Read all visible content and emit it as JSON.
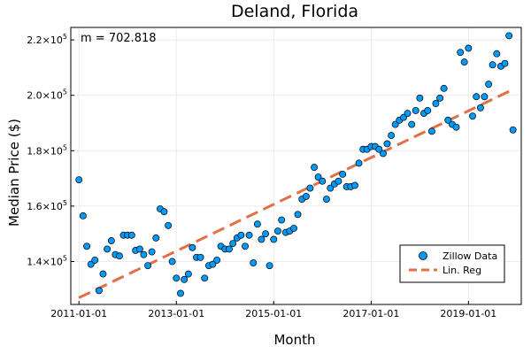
{
  "chart_data": {
    "type": "scatter",
    "title": "Deland, Florida",
    "xlabel": "Month",
    "ylabel": "Median Price ($)",
    "annotation": "m = 702.818",
    "grid": true,
    "legend_position": "bottom-right",
    "xlim": [
      "2010-11-01",
      "2020-02-01"
    ],
    "ylim": [
      124500,
      224500
    ],
    "x_ticks": [
      "2011-01-01",
      "2013-01-01",
      "2015-01-01",
      "2017-01-01",
      "2019-01-01"
    ],
    "y_ticks": [
      140000,
      160000,
      180000,
      200000,
      220000
    ],
    "y_tick_labels": [
      {
        "base": "1.4×10",
        "exp": "5"
      },
      {
        "base": "1.6×10",
        "exp": "5"
      },
      {
        "base": "1.8×10",
        "exp": "5"
      },
      {
        "base": "2.0×10",
        "exp": "5"
      },
      {
        "base": "2.2×10",
        "exp": "5"
      }
    ],
    "series": [
      {
        "name": "Zillow Data",
        "kind": "scatter",
        "color": "#009AFA",
        "x": [
          "2011-01-01",
          "2011-02-01",
          "2011-03-01",
          "2011-04-01",
          "2011-05-01",
          "2011-06-01",
          "2011-07-01",
          "2011-08-01",
          "2011-09-01",
          "2011-10-01",
          "2011-11-01",
          "2011-12-01",
          "2012-01-01",
          "2012-02-01",
          "2012-03-01",
          "2012-04-01",
          "2012-05-01",
          "2012-06-01",
          "2012-07-01",
          "2012-08-01",
          "2012-09-01",
          "2012-10-01",
          "2012-11-01",
          "2012-12-01",
          "2013-01-01",
          "2013-02-01",
          "2013-03-01",
          "2013-04-01",
          "2013-05-01",
          "2013-06-01",
          "2013-07-01",
          "2013-08-01",
          "2013-09-01",
          "2013-10-01",
          "2013-11-01",
          "2013-12-01",
          "2014-01-01",
          "2014-02-01",
          "2014-03-01",
          "2014-04-01",
          "2014-05-01",
          "2014-06-01",
          "2014-07-01",
          "2014-08-01",
          "2014-09-01",
          "2014-10-01",
          "2014-11-01",
          "2014-12-01",
          "2015-01-01",
          "2015-02-01",
          "2015-03-01",
          "2015-04-01",
          "2015-05-01",
          "2015-06-01",
          "2015-07-01",
          "2015-08-01",
          "2015-09-01",
          "2015-10-01",
          "2015-11-01",
          "2015-12-01",
          "2016-01-01",
          "2016-02-01",
          "2016-03-01",
          "2016-04-01",
          "2016-05-01",
          "2016-06-01",
          "2016-07-01",
          "2016-08-01",
          "2016-09-01",
          "2016-10-01",
          "2016-11-01",
          "2016-12-01",
          "2017-01-01",
          "2017-02-01",
          "2017-03-01",
          "2017-04-01",
          "2017-05-01",
          "2017-06-01",
          "2017-07-01",
          "2017-08-01",
          "2017-09-01",
          "2017-10-01",
          "2017-11-01",
          "2017-12-01",
          "2018-01-01",
          "2018-02-01",
          "2018-03-01",
          "2018-04-01",
          "2018-05-01",
          "2018-06-01",
          "2018-07-01",
          "2018-08-01",
          "2018-09-01",
          "2018-10-01",
          "2018-11-01",
          "2018-12-01",
          "2019-01-01",
          "2019-02-01",
          "2019-03-01",
          "2019-04-01",
          "2019-05-01",
          "2019-06-01",
          "2019-07-01",
          "2019-08-01",
          "2019-09-01",
          "2019-10-01",
          "2019-11-01",
          "2019-12-01"
        ],
        "y": [
          169500,
          156500,
          145500,
          139000,
          140500,
          129500,
          135500,
          144500,
          147500,
          142500,
          142000,
          149500,
          149500,
          149500,
          144000,
          144500,
          142500,
          138500,
          143500,
          148500,
          159000,
          158000,
          153000,
          140000,
          134000,
          128500,
          133500,
          135500,
          145000,
          141500,
          141500,
          134000,
          138500,
          139000,
          140500,
          145500,
          144500,
          144500,
          146500,
          148500,
          149500,
          145500,
          149500,
          139500,
          153500,
          148000,
          150000,
          138500,
          148000,
          151000,
          155000,
          150500,
          151000,
          152000,
          157000,
          162500,
          163500,
          166500,
          174000,
          170500,
          169000,
          162500,
          166500,
          168000,
          169000,
          171500,
          167000,
          167000,
          167500,
          175500,
          180500,
          180500,
          181500,
          181500,
          180500,
          179000,
          182500,
          185500,
          189500,
          191000,
          192000,
          193500,
          189500,
          194500,
          199000,
          193500,
          194500,
          187000,
          197000,
          199000,
          202500,
          191000,
          189500,
          188500,
          215500,
          212000,
          217000,
          192500,
          199500,
          195500,
          199500,
          204000,
          211000,
          215000,
          210500,
          211500,
          221500,
          187500
        ]
      },
      {
        "name": "Lin. Reg",
        "kind": "line",
        "color": "#E26F46",
        "x": [
          "2011-01-01",
          "2019-12-01"
        ],
        "y": [
          126900,
          202100
        ]
      }
    ]
  }
}
